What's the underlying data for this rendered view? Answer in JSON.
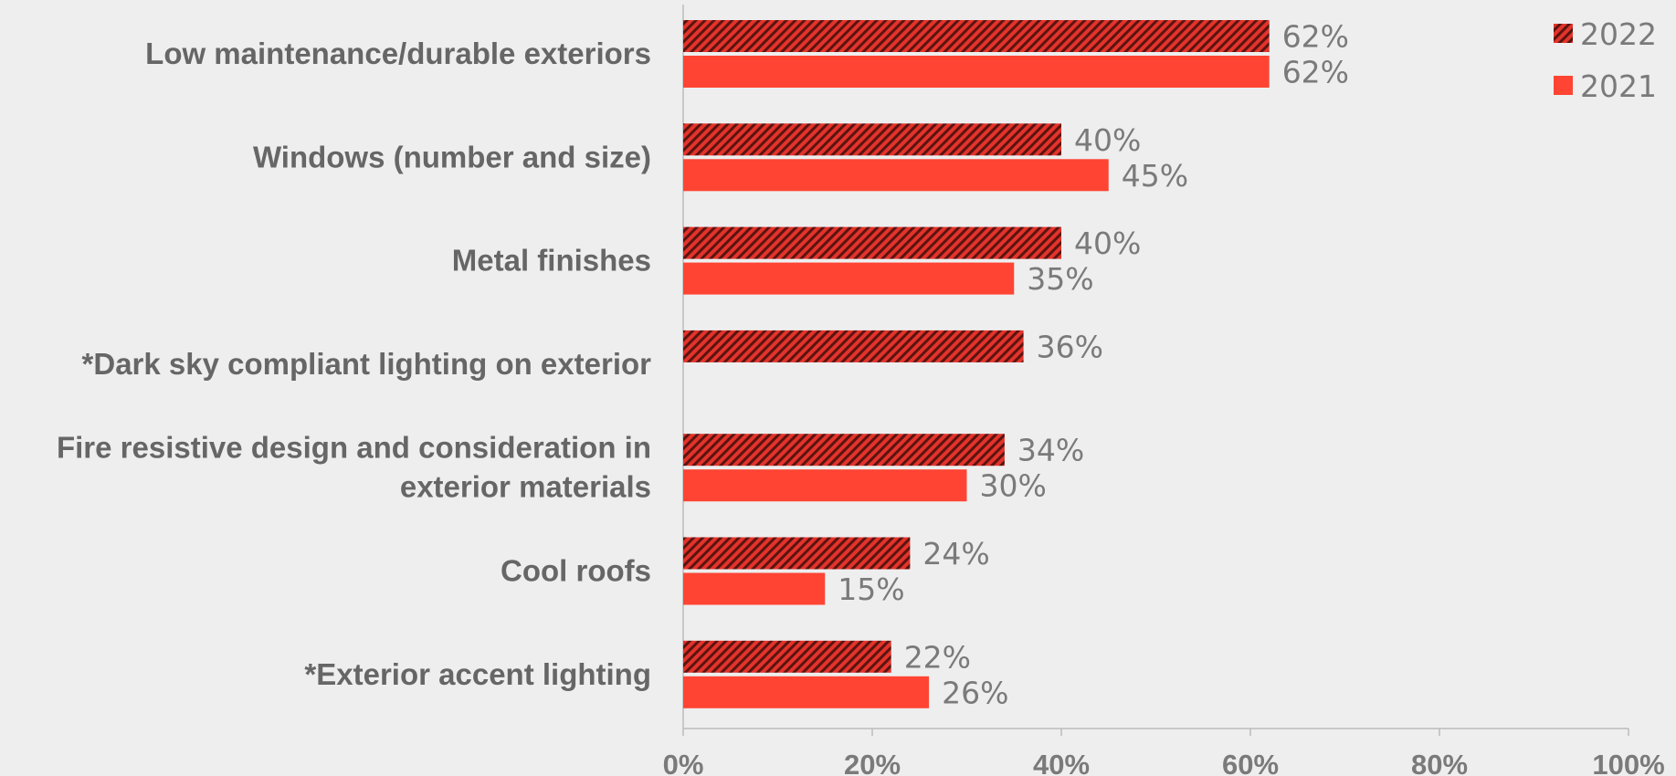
{
  "chart_data": {
    "type": "bar",
    "orientation": "horizontal",
    "categories": [
      [
        "Low maintenance/durable exteriors"
      ],
      [
        "Windows (number and size)"
      ],
      [
        "Metal finishes"
      ],
      [
        "*Dark sky compliant lighting on exterior"
      ],
      [
        "Fire resistive design and consideration in",
        "exterior materials"
      ],
      [
        "Cool roofs"
      ],
      [
        "*Exterior accent lighting"
      ]
    ],
    "series": [
      {
        "name": "2022",
        "values": [
          62,
          40,
          40,
          36,
          34,
          24,
          22
        ],
        "labels": [
          "62%",
          "40%",
          "40%",
          "36%",
          "34%",
          "24%",
          "22%"
        ],
        "color": "#d7302a",
        "pattern": "diagonal-stripes"
      },
      {
        "name": "2021",
        "values": [
          62,
          45,
          35,
          null,
          30,
          15,
          26
        ],
        "labels": [
          "62%",
          "45%",
          "35%",
          null,
          "30%",
          "15%",
          "26%"
        ],
        "color": "#ff4433",
        "pattern": "solid"
      }
    ],
    "xlim": [
      0,
      100
    ],
    "xticks": [
      "0%",
      "20%",
      "40%",
      "60%",
      "80%",
      "100%"
    ],
    "legend_position": "top-right",
    "grid": false
  }
}
